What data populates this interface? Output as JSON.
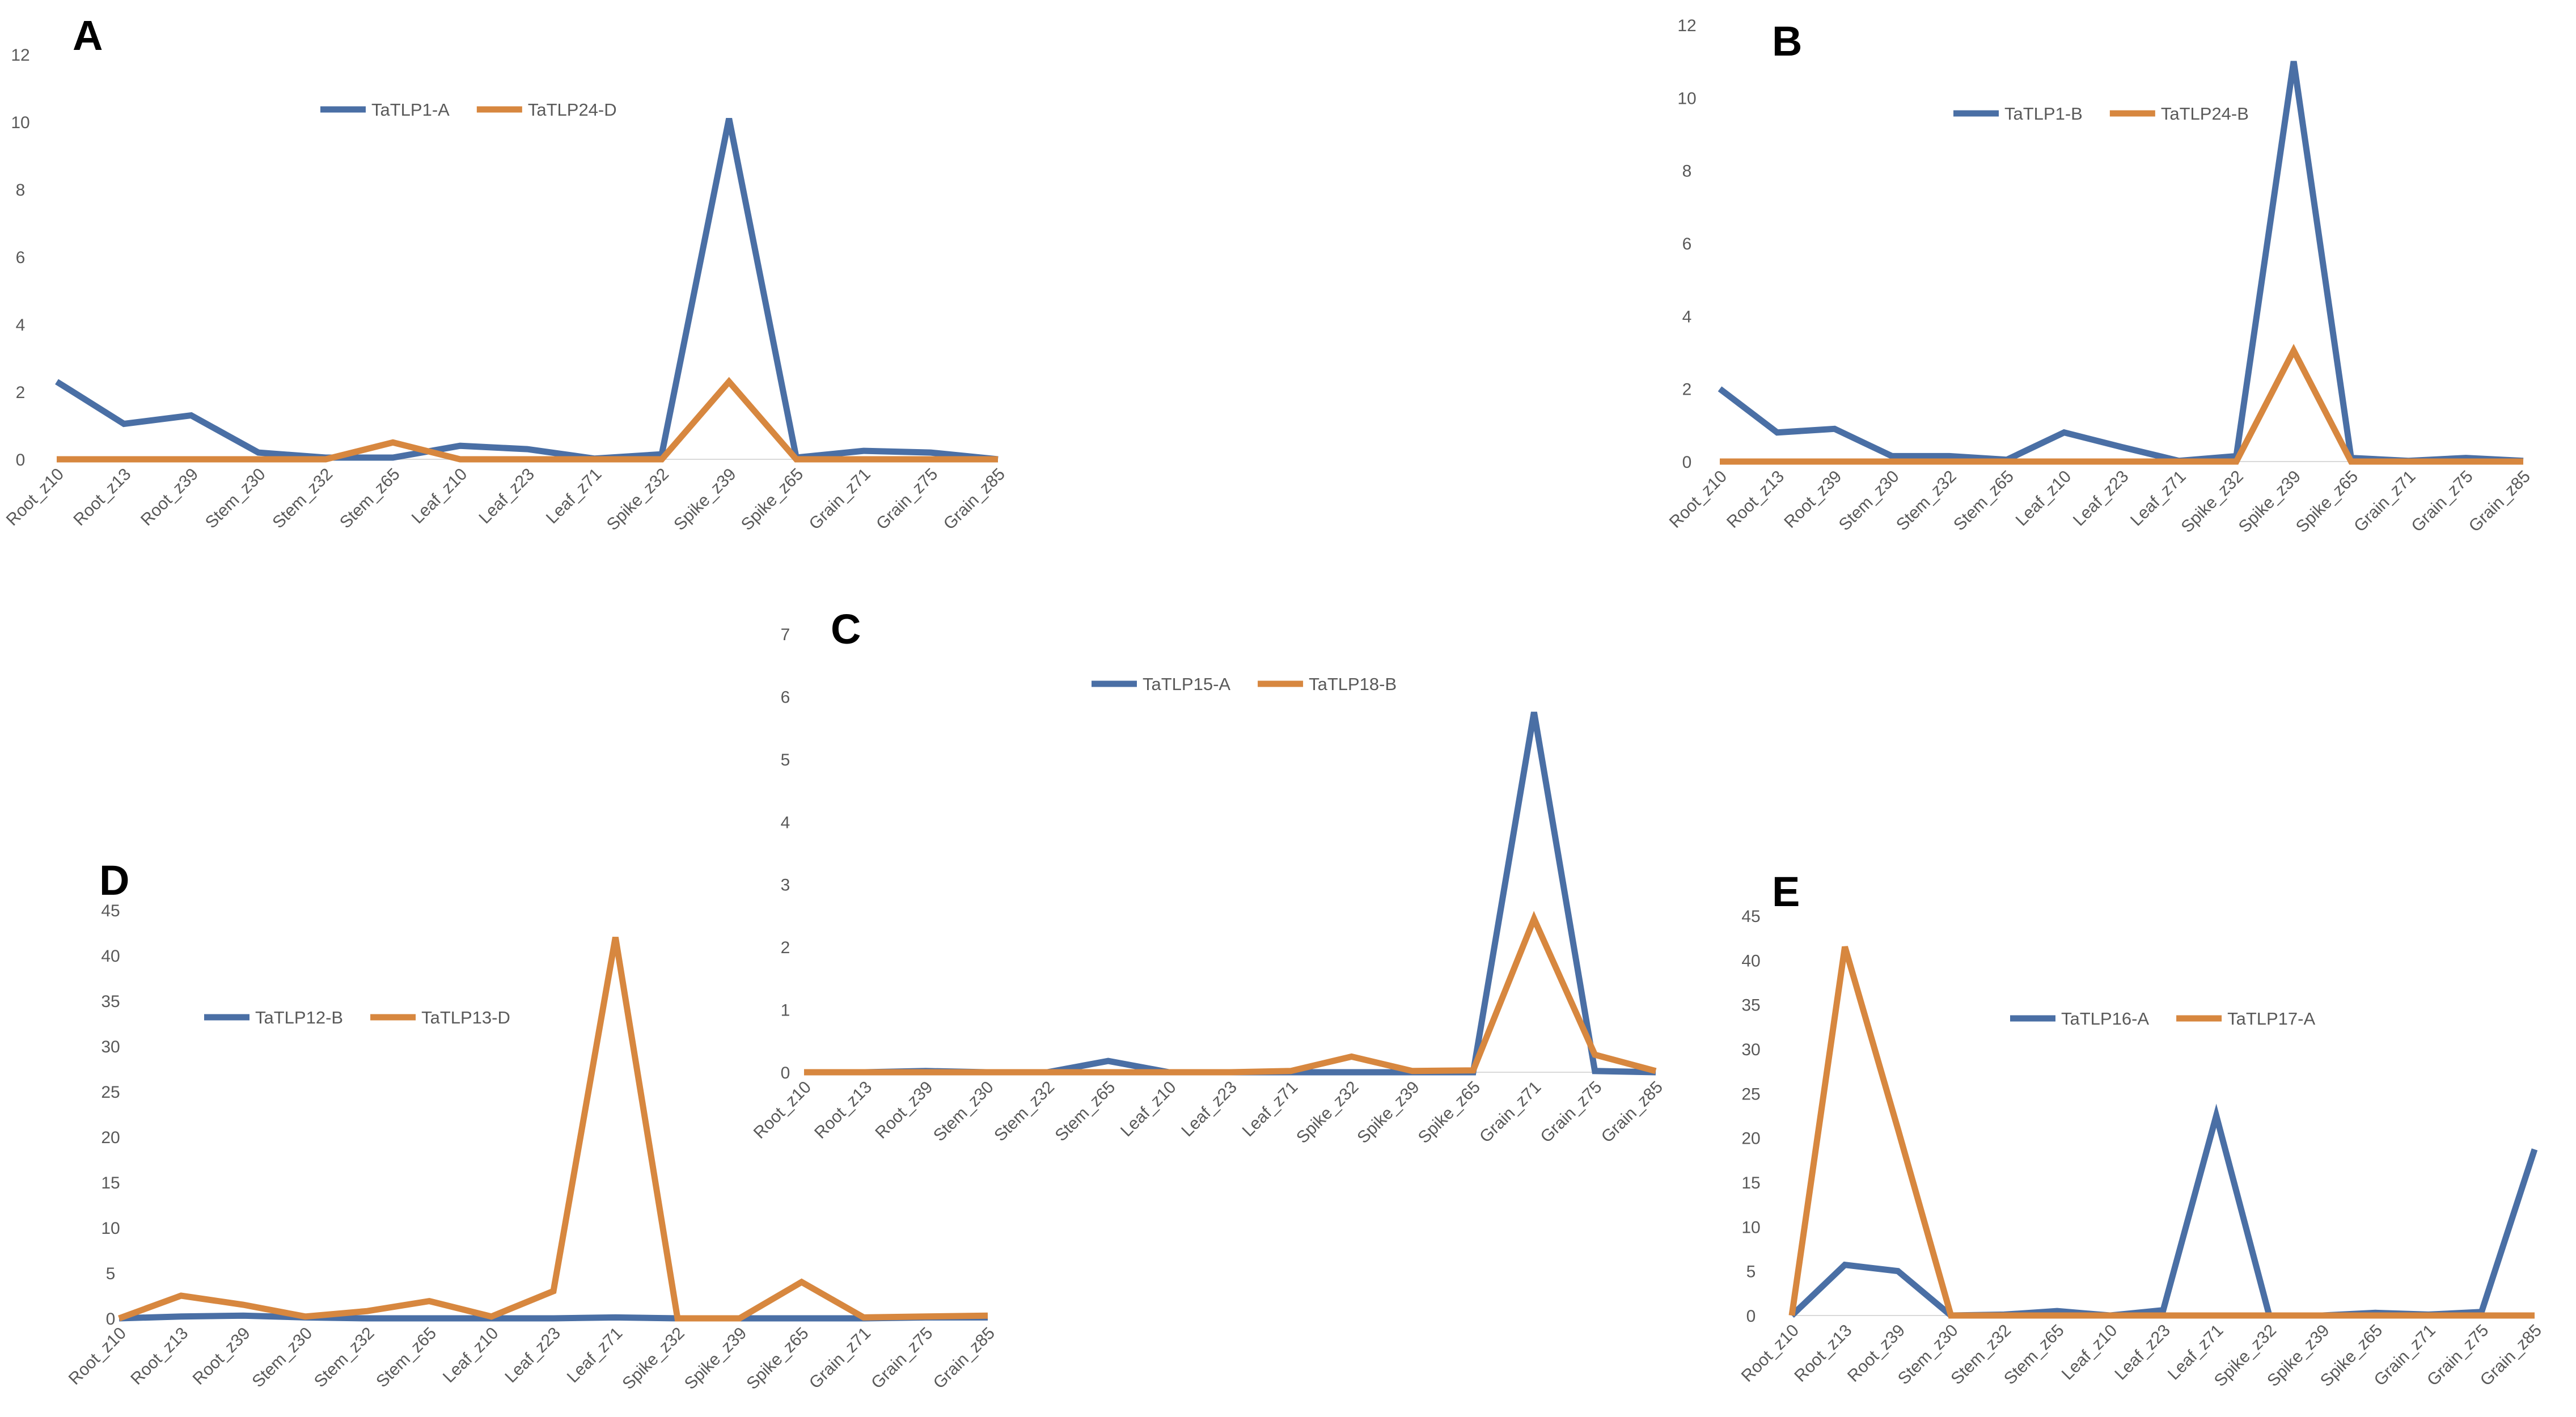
{
  "colors": {
    "series1": "#4A6FA5",
    "series2": "#D7873F",
    "axis": "#d9d9d9",
    "text": "#595959"
  },
  "chart_data": [
    {
      "panel": "A",
      "type": "line",
      "categories": [
        "Root_z10",
        "Root_z13",
        "Root_z39",
        "Stem_z30",
        "Stem_z32",
        "Stem_z65",
        "Leaf_z10",
        "Leaf_z23",
        "Leaf_z71",
        "Spike_z32",
        "Spike_z39",
        "Spike_z65",
        "Grain_z71",
        "Grain_z75",
        "Grain_z85"
      ],
      "yticks": [
        "0",
        "2",
        "4",
        "6",
        "8",
        "10",
        "12"
      ],
      "ylim": [
        0,
        12
      ],
      "legend": "top-center",
      "series": [
        {
          "name": "TaTLP1-A",
          "values": [
            2.3,
            1.05,
            1.3,
            0.2,
            0.05,
            0.05,
            0.4,
            0.3,
            0.02,
            0.15,
            10.1,
            0.05,
            0.25,
            0.2,
            0.0
          ]
        },
        {
          "name": "TaTLP24-D",
          "values": [
            0,
            0,
            0,
            0,
            0,
            0.5,
            0,
            0,
            0,
            0,
            2.3,
            0,
            0,
            0,
            0
          ]
        }
      ]
    },
    {
      "panel": "B",
      "type": "line",
      "categories": [
        "Root_z10",
        "Root_z13",
        "Root_z39",
        "Stem_z30",
        "Stem_z32",
        "Stem_z65",
        "Leaf_z10",
        "Leaf_z23",
        "Leaf_z71",
        "Spike_z32",
        "Spike_z39",
        "Spike_z65",
        "Grain_z71",
        "Grain_z75",
        "Grain_z85"
      ],
      "yticks": [
        "0",
        "2",
        "4",
        "6",
        "8",
        "10",
        "12"
      ],
      "ylim": [
        0,
        12
      ],
      "legend": "top-center",
      "series": [
        {
          "name": "TaTLP1-B",
          "values": [
            2.0,
            0.8,
            0.9,
            0.15,
            0.15,
            0.05,
            0.8,
            0.4,
            0.02,
            0.15,
            11.0,
            0.1,
            0.02,
            0.1,
            0.02
          ]
        },
        {
          "name": "TaTLP24-B",
          "values": [
            0,
            0,
            0,
            0,
            0,
            0,
            0,
            0,
            0,
            0,
            3.05,
            0,
            0,
            0,
            0
          ]
        }
      ]
    },
    {
      "panel": "C",
      "type": "line",
      "categories": [
        "Root_z10",
        "Root_z13",
        "Root_z39",
        "Stem_z30",
        "Stem_z32",
        "Stem_z65",
        "Leaf_z10",
        "Leaf_z23",
        "Leaf_z71",
        "Spike_z32",
        "Spike_z39",
        "Spike_z65",
        "Grain_z71",
        "Grain_z75",
        "Grain_z85"
      ],
      "yticks": [
        "0",
        "1",
        "2",
        "3",
        "4",
        "5",
        "6",
        "7"
      ],
      "ylim": [
        0,
        7
      ],
      "legend": "top-center",
      "series": [
        {
          "name": "TaTLP15-A",
          "values": [
            0,
            0,
            0.02,
            0,
            0,
            0.18,
            0,
            0,
            0,
            0,
            0,
            0,
            5.75,
            0.02,
            0
          ]
        },
        {
          "name": "TaTLP18-B",
          "values": [
            0,
            0,
            0,
            0,
            0,
            0,
            0,
            0,
            0.02,
            0.25,
            0.02,
            0.03,
            2.45,
            0.28,
            0.02
          ]
        }
      ]
    },
    {
      "panel": "D",
      "type": "line",
      "categories": [
        "Root_z10",
        "Root_z13",
        "Root_z39",
        "Stem_z30",
        "Stem_z32",
        "Stem_z65",
        "Leaf_z10",
        "Leaf_z23",
        "Leaf_z71",
        "Spike_z32",
        "Spike_z39",
        "Spike_z65",
        "Grain_z71",
        "Grain_z75",
        "Grain_z85"
      ],
      "yticks": [
        "0",
        "5",
        "10",
        "15",
        "20",
        "25",
        "30",
        "35",
        "40",
        "45"
      ],
      "ylim": [
        0,
        45
      ],
      "legend": "top-center",
      "series": [
        {
          "name": "TaTLP12-B",
          "values": [
            0,
            0.2,
            0.3,
            0.1,
            0,
            0,
            0,
            0,
            0.1,
            0,
            0,
            0,
            0,
            0.1,
            0.1
          ]
        },
        {
          "name": "TaTLP13-D",
          "values": [
            0,
            2.5,
            1.5,
            0.2,
            0.8,
            1.9,
            0.2,
            3.0,
            42.0,
            0,
            0,
            4.0,
            0.1,
            0.2,
            0.3
          ]
        }
      ]
    },
    {
      "panel": "E",
      "type": "line",
      "categories": [
        "Root_z10",
        "Root_z13",
        "Root_z39",
        "Stem_z30",
        "Stem_z32",
        "Stem_z65",
        "Leaf_z10",
        "Leaf_z23",
        "Leaf_z71",
        "Spike_z32",
        "Spike_z39",
        "Spike_z65",
        "Grain_z71",
        "Grain_z75",
        "Grain_z85"
      ],
      "yticks": [
        "0",
        "5",
        "10",
        "15",
        "20",
        "25",
        "30",
        "35",
        "40",
        "45"
      ],
      "ylim": [
        0,
        45
      ],
      "legend": "center-right",
      "series": [
        {
          "name": "TaTLP16-A",
          "values": [
            0,
            5.7,
            5.0,
            0,
            0.1,
            0.5,
            0,
            0.6,
            22.5,
            0,
            0,
            0.3,
            0.1,
            0.4,
            18.7
          ]
        },
        {
          "name": "TaTLP17-A",
          "values": [
            0,
            41.5,
            21.0,
            0,
            0,
            0,
            0,
            0,
            0,
            0,
            0,
            0,
            0,
            0,
            0
          ]
        }
      ]
    }
  ]
}
